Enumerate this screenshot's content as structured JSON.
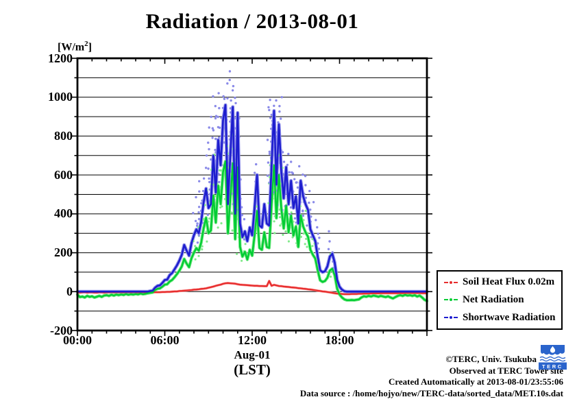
{
  "title": "Radiation / 2013-08-01",
  "axes": {
    "unit_base": "[W/m",
    "unit_sup": "2",
    "unit_close": "]",
    "y_ticks": [
      {
        "v": 1200,
        "label": "1200"
      },
      {
        "v": 1000,
        "label": "1000"
      },
      {
        "v": 800,
        "label": "800"
      },
      {
        "v": 600,
        "label": "600"
      },
      {
        "v": 400,
        "label": "400"
      },
      {
        "v": 200,
        "label": "200"
      },
      {
        "v": 0,
        "label": "0"
      },
      {
        "v": -200,
        "label": "-200"
      }
    ],
    "x_ticks": [
      {
        "h": 0,
        "label": "00:00"
      },
      {
        "h": 6,
        "label": "06:00"
      },
      {
        "h": 12,
        "label": "12:00"
      },
      {
        "h": 18,
        "label": "18:00"
      }
    ],
    "x_label_line1": "Aug-01",
    "x_label_line2": "(LST)"
  },
  "legend": {
    "items": [
      {
        "label": "Soil Heat Flux 0.02m",
        "color": "#e62e2e"
      },
      {
        "label": "Net Radiation",
        "color": "#00cc33"
      },
      {
        "label": "Shortwave Radiation",
        "color": "#1d1dce"
      }
    ]
  },
  "footer": {
    "lines": [
      "©TERC, Univ. Tsukuba",
      "Observed at TERC Tower site",
      "Created Automatically at 2013-08-01/23:55:06",
      "Data source : /home/hojyo/new/TERC-data/sorted_data/MET.10s.dat"
    ]
  },
  "logo": {
    "text": "TERC",
    "color": "#2a64cc"
  },
  "chart_data": {
    "type": "line",
    "title": "Radiation / 2013-08-01",
    "xlabel": "Aug-01 (LST)",
    "ylabel": "[W/m2]",
    "xlim_hours": [
      0,
      24
    ],
    "ylim": [
      -200,
      1200
    ],
    "grid": "horizontal-every-100",
    "legend_position": "outside-right-bottom",
    "x_step_hours": 0.166667,
    "series": [
      {
        "name": "Soil Heat Flux 0.02m",
        "color": "#e62e2e",
        "halo": "#ff9f9f",
        "width": 2.3,
        "halo_width": 3.5,
        "values": [
          -4,
          -5,
          -4,
          -3,
          -5,
          -4,
          -4,
          -5,
          -5,
          -4,
          -4,
          -5,
          -4,
          -4,
          -3,
          -4,
          -4,
          -3,
          -4,
          -4,
          -3,
          -3,
          -4,
          -3,
          -3,
          -4,
          -3,
          -3,
          -4,
          -4,
          -4,
          -4,
          -3,
          -3,
          -3,
          -2,
          -2,
          -1,
          -1,
          0,
          1,
          1,
          3,
          4,
          5,
          6,
          7,
          8,
          10,
          11,
          12,
          14,
          15,
          17,
          20,
          23,
          26,
          30,
          33,
          36,
          40,
          43,
          44,
          43,
          42,
          41,
          38,
          36,
          35,
          34,
          33,
          32,
          31,
          30,
          30,
          29,
          29,
          28,
          28,
          55,
          30,
          35,
          32,
          29,
          28,
          26,
          25,
          24,
          22,
          21,
          20,
          18,
          17,
          15,
          14,
          12,
          11,
          9,
          7,
          5,
          3,
          1,
          0,
          -2,
          -4,
          -6,
          -8,
          -10,
          -11,
          -12,
          -13,
          -13,
          -13,
          -12,
          -12,
          -12,
          -11,
          -11,
          -10,
          -10,
          -10,
          -9,
          -9,
          -9,
          -9,
          -8,
          -8,
          -8,
          -8,
          -8,
          -8,
          -8,
          -8,
          -8,
          -8,
          -7,
          -7,
          -7,
          -7,
          -7,
          -7,
          -7,
          -8,
          -8,
          -8
        ]
      },
      {
        "name": "Net Radiation",
        "color": "#00cc33",
        "halo": "#79e987",
        "width": 2.4,
        "halo_width": 4.5,
        "values": [
          -15,
          -28,
          -25,
          -30,
          -22,
          -27,
          -24,
          -30,
          -26,
          -22,
          -27,
          -20,
          -18,
          -22,
          -16,
          -20,
          -15,
          -18,
          -14,
          -17,
          -12,
          -16,
          -13,
          -15,
          -12,
          -14,
          -10,
          -13,
          -11,
          -8,
          -6,
          -4,
          8,
          15,
          17,
          26,
          36,
          38,
          52,
          60,
          74,
          90,
          108,
          130,
          168,
          144,
          126,
          172,
          200,
          224,
          210,
          252,
          326,
          380,
          300,
          315,
          495,
          355,
          545,
          450,
          615,
          670,
          300,
          480,
          660,
          270,
          640,
          230,
          180,
          205,
          165,
          215,
          185,
          290,
          415,
          225,
          215,
          305,
          230,
          225,
          450,
          650,
          378,
          600,
          428,
          325,
          442,
          305,
          392,
          288,
          335,
          230,
          392,
          335,
          305,
          282,
          215,
          190,
          170,
          110,
          58,
          50,
          55,
          72,
          108,
          118,
          85,
          15,
          -15,
          -30,
          -40,
          -44,
          -44,
          -43,
          -44,
          -42,
          -40,
          -30,
          -24,
          -26,
          -22,
          -25,
          -20,
          -23,
          -26,
          -22,
          -25,
          -28,
          -24,
          -30,
          -35,
          -28,
          -22,
          -18,
          -22,
          -16,
          -20,
          -18,
          -22,
          -18,
          -25,
          -20,
          -30,
          -42,
          -48
        ]
      },
      {
        "name": "Shortwave Radiation",
        "color": "#1d1dce",
        "halo": "#9191ea",
        "width": 2.6,
        "halo_width": 5,
        "values": [
          0,
          0,
          0,
          0,
          0,
          0,
          0,
          0,
          0,
          0,
          0,
          0,
          0,
          0,
          0,
          0,
          0,
          0,
          0,
          0,
          0,
          0,
          0,
          0,
          0,
          0,
          0,
          0,
          0,
          0,
          3,
          5,
          20,
          30,
          32,
          45,
          60,
          62,
          85,
          95,
          115,
          135,
          160,
          190,
          240,
          210,
          185,
          250,
          290,
          320,
          300,
          360,
          460,
          530,
          430,
          450,
          700,
          510,
          780,
          650,
          880,
          960,
          450,
          700,
          950,
          400,
          920,
          350,
          280,
          310,
          260,
          330,
          290,
          430,
          600,
          340,
          330,
          450,
          350,
          340,
          650,
          930,
          550,
          860,
          620,
          480,
          640,
          450,
          570,
          430,
          490,
          350,
          570,
          490,
          450,
          420,
          320,
          290,
          260,
          180,
          110,
          100,
          105,
          130,
          180,
          195,
          150,
          60,
          25,
          10,
          2,
          0,
          0,
          0,
          0,
          0,
          0,
          0,
          0,
          0,
          0,
          0,
          0,
          0,
          0,
          0,
          0,
          0,
          0,
          0,
          0,
          0,
          0,
          0,
          0,
          0,
          0,
          0,
          0,
          0,
          0,
          0,
          0,
          0,
          0
        ]
      }
    ],
    "scatter_colors": {
      "shortwave": "#8a8ae8",
      "net": "#83ea8c"
    },
    "scatter_columns": [
      [
        8.1,
        260,
        400
      ],
      [
        8.3,
        280,
        480
      ],
      [
        8.5,
        320,
        560
      ],
      [
        8.7,
        350,
        640
      ],
      [
        9.0,
        400,
        760
      ],
      [
        9.2,
        450,
        900
      ],
      [
        9.35,
        550,
        1010
      ],
      [
        9.5,
        480,
        840
      ],
      [
        9.65,
        600,
        1010
      ],
      [
        9.8,
        520,
        900
      ],
      [
        10.0,
        650,
        1010
      ],
      [
        10.15,
        700,
        1060
      ],
      [
        10.45,
        500,
        1000
      ],
      [
        10.6,
        600,
        1135
      ],
      [
        10.75,
        450,
        1060
      ],
      [
        10.95,
        550,
        960
      ],
      [
        11.1,
        300,
        640
      ],
      [
        11.4,
        260,
        430
      ],
      [
        12.3,
        420,
        650
      ],
      [
        13.15,
        550,
        940
      ],
      [
        13.3,
        600,
        995
      ],
      [
        13.45,
        520,
        960
      ],
      [
        13.65,
        450,
        820
      ],
      [
        13.8,
        550,
        990
      ],
      [
        13.95,
        500,
        1000
      ],
      [
        14.15,
        420,
        720
      ],
      [
        14.35,
        450,
        700
      ],
      [
        14.55,
        400,
        660
      ],
      [
        14.75,
        430,
        660
      ],
      [
        14.95,
        380,
        610
      ],
      [
        15.15,
        350,
        570
      ],
      [
        15.35,
        420,
        650
      ],
      [
        15.55,
        380,
        600
      ],
      [
        15.85,
        340,
        520
      ],
      [
        16.15,
        290,
        450
      ],
      [
        16.45,
        210,
        370
      ],
      [
        17.4,
        120,
        300
      ]
    ]
  }
}
